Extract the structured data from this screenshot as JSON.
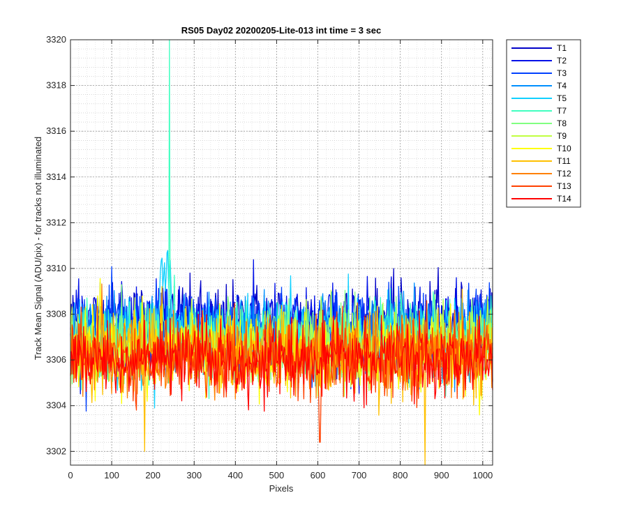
{
  "chart_data": {
    "type": "line",
    "title": "RS05 Day02 20200205-Lite-013 int time = 3 sec",
    "xlabel": "Pixels",
    "ylabel": "Track Mean Signal (ADU/pix) - for tracks not illuminated",
    "xlim": [
      0,
      1024
    ],
    "ylim": [
      3301.4,
      3320
    ],
    "x_ticks": [
      0,
      100,
      200,
      300,
      400,
      500,
      600,
      700,
      800,
      900,
      1000
    ],
    "y_ticks": [
      3302,
      3304,
      3306,
      3308,
      3310,
      3312,
      3314,
      3316,
      3318,
      3320
    ],
    "grid": "major and minor, dotted",
    "legend_position": "outside-right",
    "series": [
      {
        "name": "T1",
        "color": "#0000c8",
        "mean": 3307.6,
        "spread": 1.6
      },
      {
        "name": "T2",
        "color": "#0010e8",
        "mean": 3307.5,
        "spread": 1.6
      },
      {
        "name": "T3",
        "color": "#0040ff",
        "mean": 3307.3,
        "spread": 1.6
      },
      {
        "name": "T4",
        "color": "#0090ff",
        "mean": 3307.2,
        "spread": 1.5
      },
      {
        "name": "T5",
        "color": "#10d0ff",
        "mean": 3307.0,
        "spread": 1.5,
        "features": [
          {
            "x_range": [
              215,
              245
            ],
            "peak": 3310.9
          }
        ]
      },
      {
        "name": "T7",
        "color": "#40ffc0",
        "mean": 3306.9,
        "spread": 1.5,
        "features": [
          {
            "x": 240,
            "peak": 3320
          }
        ]
      },
      {
        "name": "T8",
        "color": "#80ff80",
        "mean": 3306.7,
        "spread": 1.5
      },
      {
        "name": "T9",
        "color": "#c0ff40",
        "mean": 3306.6,
        "spread": 1.5
      },
      {
        "name": "T10",
        "color": "#ffff00",
        "mean": 3306.4,
        "spread": 1.5
      },
      {
        "name": "T11",
        "color": "#ffc000",
        "mean": 3306.3,
        "spread": 1.6,
        "features": [
          {
            "x": 860,
            "peak": 3301.4
          },
          {
            "x": 180,
            "peak": 3302.0
          }
        ]
      },
      {
        "name": "T12",
        "color": "#ff8000",
        "mean": 3306.2,
        "spread": 1.5
      },
      {
        "name": "T13",
        "color": "#ff4000",
        "mean": 3306.1,
        "spread": 1.5,
        "features": [
          {
            "x": 605,
            "peak": 3302.4
          }
        ]
      },
      {
        "name": "T14",
        "color": "#ff0000",
        "mean": 3306.0,
        "spread": 1.4
      }
    ]
  }
}
